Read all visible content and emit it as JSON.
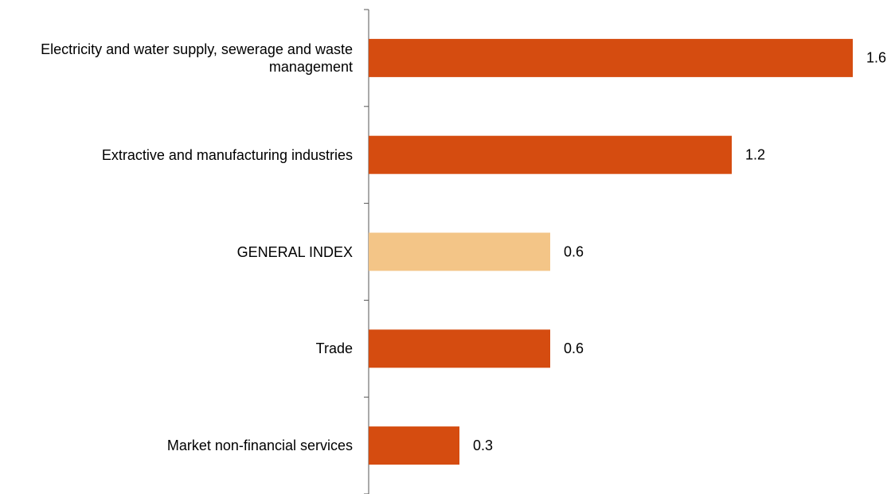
{
  "chart_data": {
    "type": "bar",
    "orientation": "horizontal",
    "categories": [
      "Electricity and water supply, sewerage and waste management",
      "Extractive and manufacturing industries",
      "GENERAL INDEX",
      "Trade",
      "Market non-financial services"
    ],
    "values": [
      1.6,
      1.2,
      0.6,
      0.6,
      0.3
    ],
    "colors": [
      "#d54c10",
      "#d54c10",
      "#f3c587",
      "#d54c10",
      "#d54c10"
    ]
  }
}
